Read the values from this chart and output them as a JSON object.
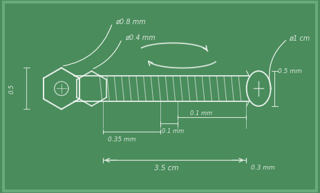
{
  "bg_color": "#4a8c5c",
  "chalk_color": "#e8f0e8",
  "chalk_light": "#ffffff",
  "chalk_dim": "#c8dcc8",
  "annotations": {
    "phi_0_8": "ø0.8 mm",
    "phi_0_4": "ø0.4 mm",
    "phi_1": "ø1 cm",
    "dim_0_5_left": "0.5",
    "dim_0_5_right": "0.5 mm",
    "dim_0_35": "0.35 mm",
    "dim_0_1a": "0.1 mm",
    "dim_0_1b": "0.1 mm",
    "dim_3_5": "3.5 cm",
    "dim_0_3": "0.3 mm"
  }
}
